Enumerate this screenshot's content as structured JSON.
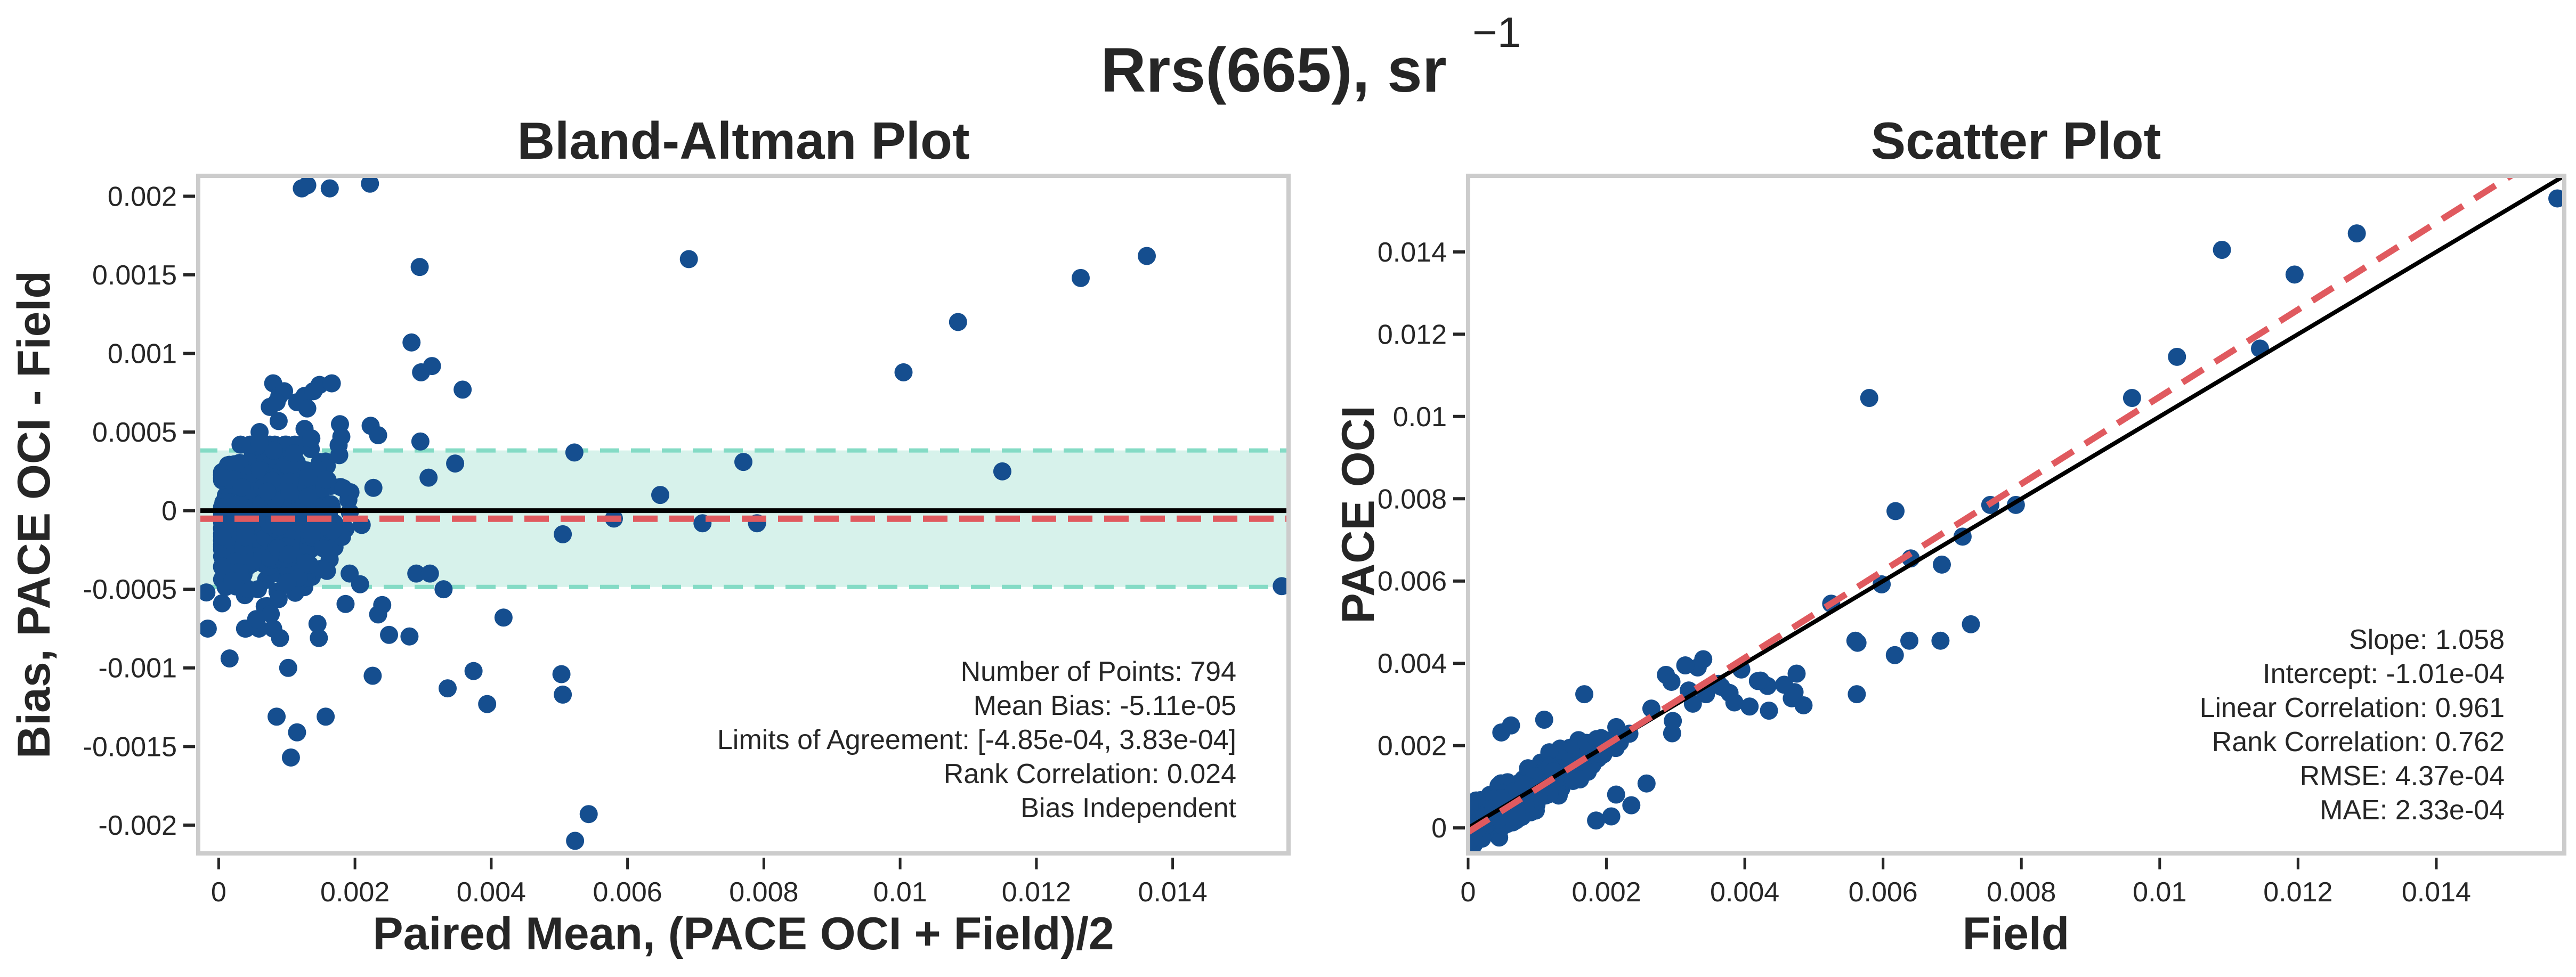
{
  "figure": {
    "suptitle": "Rrs(665), sr",
    "suptitle_superscript": "−1"
  },
  "colors": {
    "points": "#154e8f",
    "zero_line": "#000000",
    "mean_bias_line": "#e05a5f",
    "loa_band": "#d7f2eb",
    "loa_line": "#84dbc5",
    "one_to_one": "#000000",
    "regression": "#e05a5f",
    "frame": "#cccccc",
    "text": "#262626"
  },
  "chart_data": [
    {
      "id": "bland_altman",
      "type": "scatter",
      "title": "Bland-Altman Plot",
      "xlabel": "Paired Mean, (PACE OCI + Field)/2",
      "ylabel": "Bias, PACE OCI - Field",
      "xlim": [
        -0.0003,
        0.0157
      ],
      "ylim": [
        -0.00218,
        0.00213
      ],
      "xticks": [
        0,
        0.002,
        0.004,
        0.006,
        0.008,
        0.01,
        0.012,
        0.014
      ],
      "xtick_labels": [
        "0",
        "0.002",
        "0.004",
        "0.006",
        "0.008",
        "0.01",
        "0.012",
        "0.014"
      ],
      "yticks": [
        0.002,
        0.0015,
        0.001,
        0.0005,
        0,
        -0.0005,
        -0.001,
        -0.0015,
        -0.002
      ],
      "ytick_labels": [
        "0.002",
        "0.0015",
        "0.001",
        "0.0005",
        "0",
        "-0.0005",
        "-0.001",
        "-0.0015",
        "-0.002"
      ],
      "grid": false,
      "zero_line": 0,
      "mean_bias": -5.11e-05,
      "limits_of_agreement": [
        -0.000485,
        0.000383
      ],
      "stats_box": {
        "position": "bottom-right",
        "lines": [
          "Number of Points: 794",
          "Mean Bias: -5.11e-05",
          "Limits of Agreement: [-4.85e-04, 3.83e-04]",
          "Rank Correlation: 0.024",
          "Bias Independent"
        ]
      },
      "outliers": [
        [
          0.00122,
          0.00205
        ],
        [
          0.0013,
          0.00207
        ],
        [
          0.00163,
          0.00205
        ],
        [
          0.00222,
          0.00208
        ],
        [
          0.00295,
          0.00155
        ],
        [
          0.00283,
          0.00107
        ],
        [
          0.00297,
          0.00088
        ],
        [
          0.00313,
          0.00092
        ],
        [
          0.00296,
          0.00044
        ],
        [
          0.00308,
          0.00021
        ],
        [
          0.00347,
          0.0003
        ],
        [
          0.00522,
          0.00037
        ],
        [
          0.00505,
          -0.00015
        ],
        [
          0.0058,
          -5e-05
        ],
        [
          0.00648,
          0.0001
        ],
        [
          0.0069,
          0.0016
        ],
        [
          0.0071,
          -8e-05
        ],
        [
          0.0077,
          0.00031
        ],
        [
          0.0079,
          -8e-05
        ],
        [
          0.01005,
          0.00088
        ],
        [
          0.01085,
          0.0012
        ],
        [
          0.0115,
          0.00025
        ],
        [
          0.01265,
          0.00148
        ],
        [
          0.01362,
          0.00162
        ],
        [
          0.0156,
          -0.00048
        ],
        [
          0.00358,
          0.00077
        ],
        [
          0.00223,
          0.00054
        ],
        [
          0.00234,
          0.00048
        ],
        [
          0.0028,
          -0.0008
        ],
        [
          0.0029,
          -0.0004
        ],
        [
          0.0031,
          -0.0004
        ],
        [
          0.0033,
          -0.0005
        ],
        [
          0.00336,
          -0.00113
        ],
        [
          0.00374,
          -0.00102
        ],
        [
          0.00394,
          -0.00123
        ],
        [
          0.00418,
          -0.00068
        ],
        [
          0.00503,
          -0.00104
        ],
        [
          0.00505,
          -0.00117
        ],
        [
          0.00523,
          -0.0021
        ],
        [
          0.00543,
          -0.00193
        ],
        [
          0.0025,
          -0.00079
        ],
        [
          0.0024,
          -0.0006
        ],
        [
          0.00234,
          -0.00066
        ],
        [
          0.00226,
          -0.00105
        ]
      ],
      "cluster": {
        "x_range": [
          0.0,
          0.0023
        ],
        "y_range": [
          -0.0016,
          0.0008
        ],
        "count": 750
      },
      "cluster_low_outliers": [
        [
          -0.00018,
          -0.00052
        ],
        [
          -0.00016,
          -0.00075
        ],
        [
          0.00016,
          -0.00094
        ],
        [
          0.00085,
          -0.00131
        ],
        [
          0.00115,
          -0.00141
        ],
        [
          0.00157,
          -0.00131
        ],
        [
          0.00106,
          -0.00157
        ],
        [
          0.00102,
          -0.001
        ],
        [
          0.0009,
          -0.00081
        ],
        [
          0.00147,
          -0.00081
        ],
        [
          0.00145,
          -0.00072
        ],
        [
          0.0004,
          -0.00075
        ],
        [
          0.0008,
          -0.00075
        ],
        [
          0.00055,
          -0.00069
        ]
      ],
      "cluster_high_outliers": [
        [
          0.0008,
          0.00081
        ],
        [
          0.00089,
          0.00073
        ],
        [
          0.00096,
          0.00076
        ],
        [
          0.00075,
          0.00066
        ],
        [
          0.00085,
          0.00069
        ],
        [
          0.00088,
          0.00057
        ],
        [
          0.00115,
          0.00069
        ],
        [
          0.00126,
          0.00073
        ],
        [
          0.0013,
          0.00065
        ],
        [
          0.00148,
          0.0008
        ],
        [
          0.00139,
          0.00076
        ],
        [
          0.00166,
          0.00081
        ],
        [
          0.00178,
          0.00055
        ],
        [
          0.0018,
          0.00047
        ],
        [
          0.00126,
          0.00052
        ],
        [
          0.00136,
          0.00046
        ],
        [
          0.0006,
          0.0005
        ],
        [
          0.0006,
          0.00043
        ]
      ]
    },
    {
      "id": "scatter",
      "type": "scatter",
      "title": "Scatter Plot",
      "xlabel": "Field",
      "ylabel": "PACE OCI",
      "xlim": [
        0,
        0.01585
      ],
      "ylim": [
        -0.00062,
        0.01585
      ],
      "xticks": [
        0,
        0.002,
        0.004,
        0.006,
        0.008,
        0.01,
        0.012,
        0.014
      ],
      "xtick_labels": [
        "0",
        "0.002",
        "0.004",
        "0.006",
        "0.008",
        "0.01",
        "0.012",
        "0.014"
      ],
      "yticks": [
        0,
        0.002,
        0.004,
        0.006,
        0.008,
        0.01,
        0.012,
        0.014
      ],
      "ytick_labels": [
        "0",
        "0.002",
        "0.004",
        "0.006",
        "0.008",
        "0.01",
        "0.012",
        "0.014"
      ],
      "grid": false,
      "one_to_one_line": {
        "slope": 1,
        "intercept": 0
      },
      "regression_line": {
        "slope": 1.058,
        "intercept": -0.000101
      },
      "stats_box": {
        "position": "bottom-right",
        "lines": [
          "Slope: 1.058",
          "Intercept: -1.01e-04",
          "Linear Correlation: 0.961",
          "Rank Correlation: 0.762",
          "RMSE: 4.37e-04",
          "MAE: 2.33e-04"
        ]
      },
      "outliers": [
        [
          0.01575,
          0.0153
        ],
        [
          0.01285,
          0.01445
        ],
        [
          0.01195,
          0.01345
        ],
        [
          0.0109,
          0.01405
        ],
        [
          0.01025,
          0.01145
        ],
        [
          0.01145,
          0.01165
        ],
        [
          0.0096,
          0.01045
        ],
        [
          0.00792,
          0.00785
        ],
        [
          0.00755,
          0.00785
        ],
        [
          0.0058,
          0.01045
        ],
        [
          0.00618,
          0.0077
        ],
        [
          0.00598,
          0.00592
        ],
        [
          0.0064,
          0.00655
        ],
        [
          0.00715,
          0.00708
        ],
        [
          0.00685,
          0.0064
        ],
        [
          0.00525,
          0.00545
        ],
        [
          0.0056,
          0.00455
        ],
        [
          0.00563,
          0.0045
        ],
        [
          0.00562,
          0.00325
        ],
        [
          0.00617,
          0.0042
        ],
        [
          0.00638,
          0.00455
        ],
        [
          0.00683,
          0.00455
        ],
        [
          0.00727,
          0.00495
        ],
        [
          0.00433,
          0.00345
        ],
        [
          0.00423,
          0.00358
        ],
        [
          0.00472,
          0.0033
        ],
        [
          0.00475,
          0.00375
        ],
        [
          0.00468,
          0.00315
        ],
        [
          0.00457,
          0.00348
        ],
        [
          0.00485,
          0.00298
        ],
        [
          0.00435,
          0.00285
        ],
        [
          0.00378,
          0.00328
        ],
        [
          0.00385,
          0.00305
        ],
        [
          0.00407,
          0.00295
        ],
        [
          0.00419,
          0.00357
        ],
        [
          0.00366,
          0.00343
        ],
        [
          0.00344,
          0.00325
        ],
        [
          0.00332,
          0.0039
        ],
        [
          0.0034,
          0.0041
        ],
        [
          0.00286,
          0.00372
        ],
        [
          0.00314,
          0.00395
        ],
        [
          0.00362,
          0.0035
        ],
        [
          0.00395,
          0.00385
        ],
        [
          0.00325,
          0.00302
        ],
        [
          0.00294,
          0.00355
        ],
        [
          0.00319,
          0.00334
        ],
        [
          0.00048,
          0.00232
        ],
        [
          0.00062,
          0.00249
        ],
        [
          0.0011,
          0.00263
        ],
        [
          0.00168,
          0.00325
        ],
        [
          0.00258,
          0.00108
        ],
        [
          0.00214,
          0.00081
        ],
        [
          0.00236,
          0.00055
        ],
        [
          0.00207,
          0.00028
        ],
        [
          0.00185,
          0.00018
        ],
        [
          0.00265,
          0.0029
        ],
        [
          0.00295,
          0.0023
        ],
        [
          0.00296,
          0.0026
        ]
      ],
      "cluster": {
        "x_range": [
          0.0,
          0.0026
        ],
        "y_range": [
          -0.0006,
          0.0026
        ],
        "count": 740
      }
    }
  ]
}
